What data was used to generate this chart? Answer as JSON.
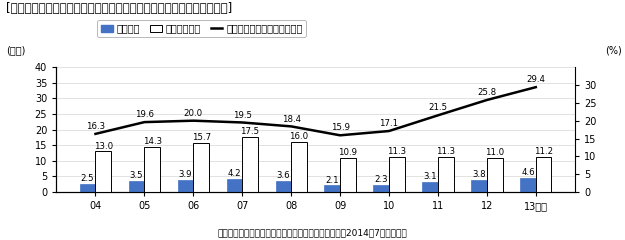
{
  "years": [
    "04",
    "05",
    "06",
    "07",
    "08",
    "09",
    "10",
    "11",
    "12",
    "13年度"
  ],
  "local_corp": [
    2.5,
    3.5,
    3.9,
    4.2,
    3.6,
    2.1,
    2.3,
    3.1,
    3.8,
    4.6
  ],
  "domestic_corp": [
    13.0,
    14.3,
    15.7,
    17.5,
    16.0,
    10.9,
    11.3,
    11.3,
    11.0,
    11.2
  ],
  "overseas_ratio": [
    16.3,
    19.6,
    20.0,
    19.5,
    18.4,
    15.9,
    17.1,
    21.5,
    25.8,
    29.4
  ],
  "local_corp_labels": [
    "2.5",
    "3.5",
    "3.9",
    "4.2",
    "3.6",
    "2.1",
    "2.3",
    "3.1",
    "3.8",
    "4.6"
  ],
  "domestic_corp_labels": [
    "13.0",
    "14.3",
    "15.7",
    "17.5",
    "16.0",
    "10.9",
    "11.3",
    "11.3",
    "11.0",
    "11.2"
  ],
  "overseas_ratio_labels": [
    "16.3",
    "19.6",
    "20.0",
    "19.5",
    "18.4",
    "15.9",
    "17.1",
    "21.5",
    "25.8",
    "29.4"
  ],
  "local_corp_color": "#4472c4",
  "domestic_corp_color": "#ffffff",
  "domestic_corp_edge": "#000000",
  "line_color": "#000000",
  "title": "[図表３　現地法人設備投資額及び海外設備投資比率の推移（製造業）]",
  "ylabel_left": "(兆円)",
  "ylabel_right": "(%)",
  "ylim_left": [
    0,
    40
  ],
  "ylim_right": [
    0,
    35
  ],
  "yticks_left": [
    0,
    5,
    10,
    15,
    20,
    25,
    30,
    35,
    40
  ],
  "yticks_right": [
    0,
    5,
    10,
    15,
    20,
    25,
    30
  ],
  "legend_local": "現地法人",
  "legend_domestic": "国内法人企業",
  "legend_ratio": "海外設備投資比率（右目盛）",
  "source": "（経済産業省ホームページ　海外事業活動基本調査（2014年7月調査））",
  "bar_width": 0.32,
  "title_fontsize": 8.5,
  "label_fontsize": 6.2,
  "axis_fontsize": 7,
  "legend_fontsize": 7,
  "bg_color": "#ffffff"
}
